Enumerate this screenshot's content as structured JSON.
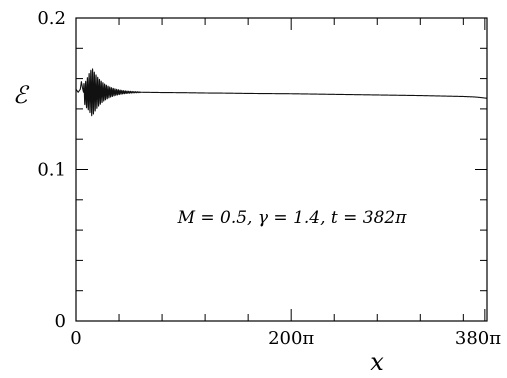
{
  "chart_data": {
    "type": "line",
    "xlabel": "x",
    "ylabel": "ℰ",
    "xlim": [
      0,
      382
    ],
    "ylim": [
      0,
      0.2
    ],
    "x_units": "π",
    "x_ticks": [
      0,
      200,
      380
    ],
    "x_tick_labels": [
      "0",
      "200π",
      "380π"
    ],
    "x_minor_ticks": [
      40,
      80,
      120,
      160,
      240,
      280,
      320,
      360
    ],
    "y_ticks": [
      0,
      0.1,
      0.2
    ],
    "y_tick_labels": [
      "0",
      "0.1",
      "0.2"
    ],
    "y_minor_ticks": [
      0.02,
      0.04,
      0.06,
      0.08,
      0.12,
      0.14,
      0.16,
      0.18
    ],
    "annotation": "M = 0.5, γ = 1.4, t = 382π",
    "grid": false,
    "series": [
      {
        "x": [
          0,
          2,
          4,
          5,
          6,
          7,
          8,
          10,
          12,
          14,
          16,
          18,
          20,
          24,
          28,
          32,
          36,
          40,
          50,
          60,
          80,
          100,
          120,
          140,
          160,
          180,
          200,
          220,
          240,
          260,
          280,
          300,
          320,
          340,
          360,
          370,
          375,
          382
        ],
        "y": [
          0.153,
          0.151,
          0.153,
          0.158,
          0.154,
          0.151,
          0.15,
          0.15,
          0.151,
          0.151,
          0.151,
          0.151,
          0.151,
          0.151,
          0.151,
          0.151,
          0.151,
          0.151,
          0.151,
          0.151,
          0.1508,
          0.1507,
          0.1505,
          0.1504,
          0.1502,
          0.1501,
          0.15,
          0.1498,
          0.1496,
          0.1494,
          0.1492,
          0.149,
          0.1488,
          0.1485,
          0.1482,
          0.1479,
          0.1476,
          0.147
        ]
      }
    ],
    "oscillation": {
      "x_range": [
        7,
        60
      ],
      "peak_x": 15,
      "peak_amplitude": 0.016,
      "period": 1.6
    }
  }
}
